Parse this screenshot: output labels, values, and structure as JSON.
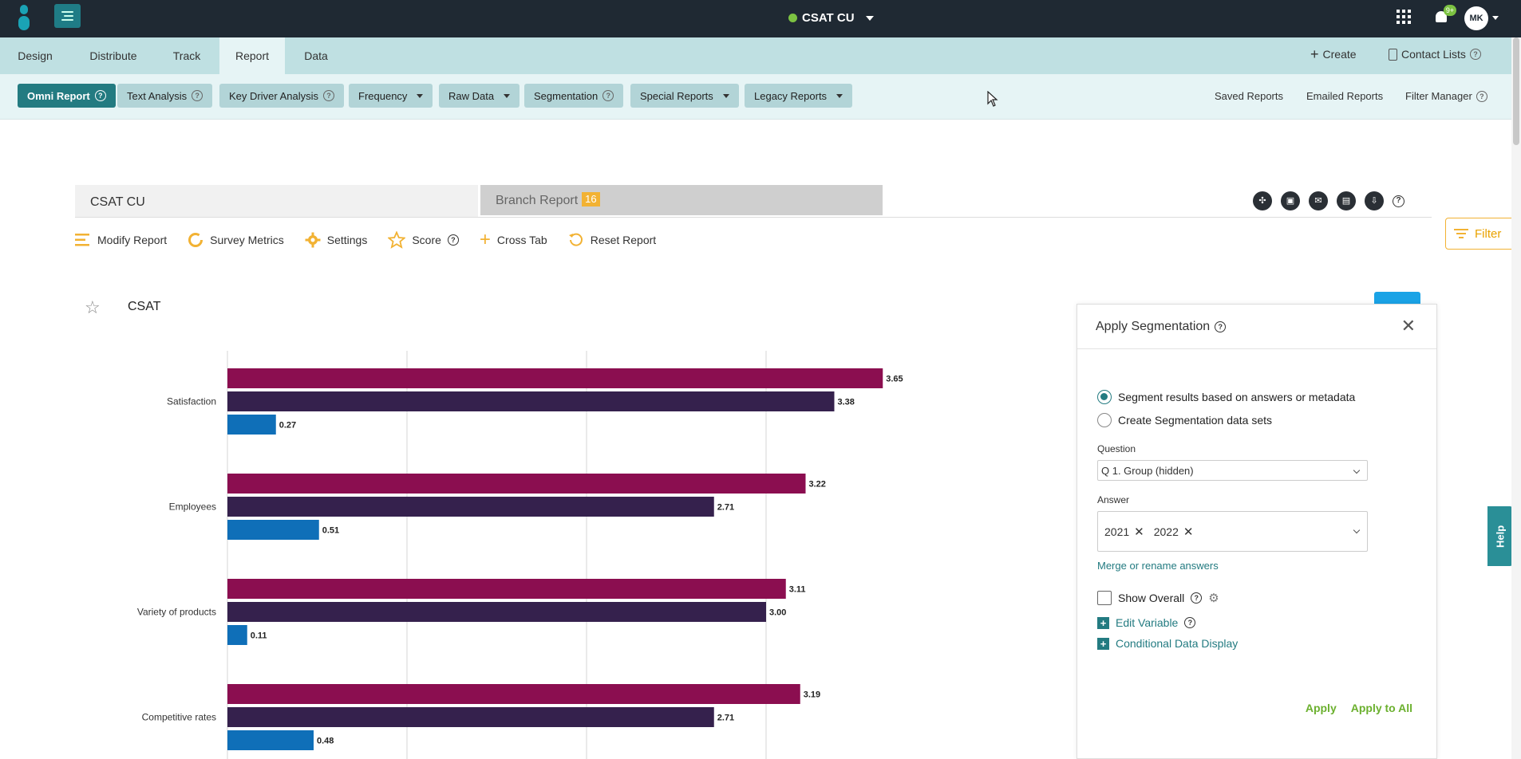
{
  "topbar": {
    "survey_title": "CSAT CU",
    "notification_count": "9+",
    "avatar_initials": "MK"
  },
  "main_nav": {
    "tabs": [
      "Design",
      "Distribute",
      "Track",
      "Report",
      "Data"
    ],
    "active": "Report",
    "create_label": "Create",
    "contact_lists_label": "Contact Lists"
  },
  "sub_nav": {
    "items": [
      "Omni Report",
      "Text Analysis",
      "Key Driver Analysis",
      "Frequency",
      "Raw Data",
      "Segmentation",
      "Special Reports",
      "Legacy Reports"
    ],
    "active": "Omni Report",
    "saved_reports": "Saved Reports",
    "emailed_reports": "Emailed Reports",
    "filter_manager": "Filter Manager"
  },
  "report_tabs": {
    "tab1": "CSAT CU",
    "tab2": "Branch Report",
    "tab2_count": "16"
  },
  "toolbar": {
    "modify": "Modify Report",
    "survey_metrics": "Survey Metrics",
    "settings": "Settings",
    "score": "Score",
    "cross_tab": "Cross Tab",
    "reset": "Reset Report",
    "filter": "Filter"
  },
  "chart_header": {
    "title": "CSAT"
  },
  "chart_data": {
    "type": "bar",
    "orientation": "horizontal",
    "categories": [
      "Satisfaction",
      "Employees",
      "Variety of products",
      "Competitive rates"
    ],
    "series": [
      {
        "values": [
          3.65,
          3.22,
          3.11,
          3.19
        ],
        "color": "#8b0e50"
      },
      {
        "values": [
          3.38,
          2.71,
          3.0,
          2.71
        ],
        "color": "#35214d"
      },
      {
        "values": [
          0.27,
          0.51,
          0.11,
          0.48
        ],
        "color": "#0f6fb8"
      }
    ],
    "labels": [
      [
        "3.65",
        "3.22",
        "3.11",
        "3.19"
      ],
      [
        "3.38",
        "2.71",
        "3.00",
        "2.71"
      ],
      [
        "0.27",
        "0.51",
        "0.11",
        "0.48"
      ]
    ],
    "xlim": [
      0,
      4
    ],
    "grid": true
  },
  "segmentation": {
    "title": "Apply Segmentation",
    "option1": "Segment results based on answers or metadata",
    "option2": "Create Segmentation data sets",
    "question_label": "Question",
    "question_value": "Q 1. Group (hidden)",
    "answer_label": "Answer",
    "answers": [
      "2021",
      "2022"
    ],
    "merge_link": "Merge or rename answers",
    "show_overall": "Show Overall",
    "edit_variable": "Edit Variable",
    "conditional": "Conditional Data Display",
    "apply": "Apply",
    "apply_all": "Apply to All"
  },
  "help_tab": "Help"
}
